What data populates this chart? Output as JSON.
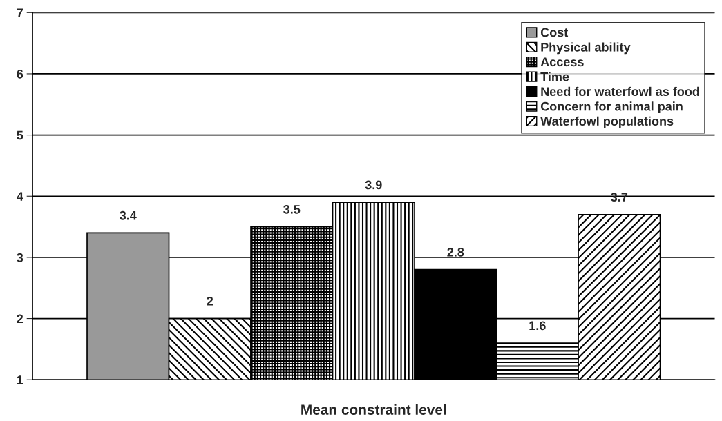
{
  "chart_data": {
    "type": "bar",
    "xlabel": "Mean constraint level",
    "categories": [
      null
    ],
    "series": [
      {
        "name": "Cost",
        "color": "#999999",
        "values": [
          3.4
        ]
      },
      {
        "name": "Physical ability",
        "color": "#000000",
        "values": [
          2
        ]
      },
      {
        "name": "Access",
        "color": "#000000",
        "values": [
          3.5
        ]
      },
      {
        "name": "Time",
        "color": "#000000",
        "values": [
          3.9
        ]
      },
      {
        "name": "Need for waterfowl as food",
        "color": "#000000",
        "values": [
          2.8
        ]
      },
      {
        "name": "Concern for animal pain",
        "color": "#000000",
        "values": [
          1.6
        ]
      },
      {
        "name": "Waterfowl populations",
        "color": "#000000",
        "values": [
          3.7
        ]
      }
    ],
    "ylim": [
      1,
      7
    ],
    "yticks": [
      1,
      2,
      3,
      4,
      5,
      6,
      7
    ],
    "grid": "y",
    "data_labels": true,
    "legend": "top right"
  }
}
